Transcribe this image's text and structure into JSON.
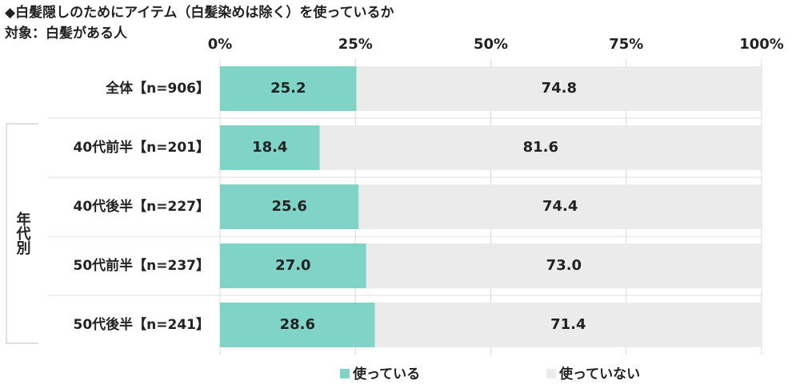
{
  "chart_data": {
    "type": "stacked_bar_horizontal",
    "title": "◆白髪隠しのためにアイテム（白髪染めは除く）を使っているか",
    "subtitle": "対象：白髪がある人",
    "category_group": "年代別",
    "categories": [
      "全体【n=906】",
      "40代前半【n=201】",
      "40代後半【n=227】",
      "50代前半【n=237】",
      "50代後半【n=241】"
    ],
    "series": [
      {
        "name": "使っている",
        "color": "#7fd4c7",
        "values": [
          25.2,
          18.4,
          25.6,
          27.0,
          28.6
        ],
        "value_labels": [
          "25.2",
          "18.4",
          "25.6",
          "27.0",
          "28.6"
        ]
      },
      {
        "name": "使っていない",
        "color": "#ebebeb",
        "values": [
          74.8,
          81.6,
          74.4,
          73.0,
          71.4
        ],
        "value_labels": [
          "74.8",
          "81.6",
          "74.4",
          "73.0",
          "71.4"
        ]
      }
    ],
    "xlim": [
      0,
      100
    ],
    "xticks": [
      {
        "value": 0,
        "label": "0%"
      },
      {
        "value": 25,
        "label": "25%"
      },
      {
        "value": 50,
        "label": "50%"
      },
      {
        "value": 75,
        "label": "75%"
      },
      {
        "value": 100,
        "label": "100%"
      }
    ],
    "grid": true
  }
}
